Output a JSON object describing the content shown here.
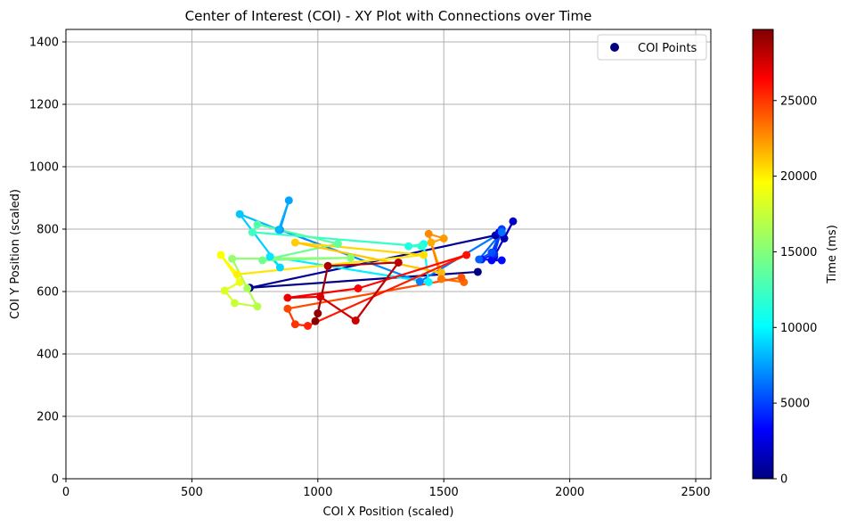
{
  "chart_data": {
    "type": "scatter",
    "title": "Center of Interest (COI) - XY Plot with Connections over Time",
    "xlabel": "COI X Position (scaled)",
    "ylabel": "COI Y Position (scaled)",
    "xlim": [
      0,
      2560
    ],
    "ylim": [
      0,
      1440
    ],
    "x_ticks": [
      "0",
      "500",
      "1000",
      "1500",
      "2000",
      "2500"
    ],
    "y_ticks": [
      "0",
      "200",
      "400",
      "600",
      "800",
      "1000",
      "1200",
      "1400"
    ],
    "grid": true,
    "legend_position": "top-right",
    "legend_label": "COI Points",
    "colorbar": {
      "label": "Time (ms)",
      "range": [
        0,
        29700
      ],
      "ticks": [
        "0",
        "5000",
        "10000",
        "15000",
        "20000",
        "25000"
      ],
      "colormap": "jet"
    },
    "series": [
      {
        "name": "COI Points",
        "t": [
          0,
          500,
          1000,
          1500,
          2000,
          2500,
          3000,
          3500,
          4000,
          4500,
          5000,
          5500,
          6000,
          6500,
          7000,
          7500,
          8000,
          8500,
          9000,
          9500,
          10000,
          10500,
          11000,
          11500,
          12000,
          12500,
          13000,
          13500,
          14000,
          14500,
          15000,
          15500,
          16000,
          16500,
          17000,
          17500,
          18000,
          18500,
          19000,
          19500,
          20000,
          20500,
          21000,
          21500,
          22000,
          22500,
          23000,
          23500,
          24000,
          24500,
          25000,
          25500,
          26000,
          26500,
          27000,
          27500,
          28000,
          28500,
          29000,
          29500
        ],
        "x": [
          1635,
          730,
          1705,
          1740,
          1775,
          1700,
          1720,
          1690,
          1730,
          1650,
          1700,
          1730,
          1690,
          1640,
          1730,
          1405,
          850,
          885,
          845,
          690,
          850,
          810,
          1440,
          1420,
          1360,
          1410,
          740,
          760,
          1080,
          780,
          1130,
          660,
          720,
          760,
          670,
          630,
          690,
          615,
          680,
          1420,
          910,
          1490,
          1450,
          1500,
          1440,
          1490,
          1580,
          1570,
          880,
          910,
          960,
          1590,
          1160,
          880,
          1010,
          1150,
          1320,
          1040,
          1000,
          990
        ],
        "y": [
          663,
          612,
          780,
          770,
          825,
          712,
          790,
          700,
          700,
          703,
          720,
          800,
          725,
          703,
          790,
          632,
          798,
          892,
          798,
          848,
          677,
          712,
          630,
          752,
          745,
          745,
          790,
          815,
          753,
          700,
          708,
          705,
          610,
          552,
          563,
          603,
          630,
          717,
          655,
          717,
          757,
          660,
          757,
          770,
          785,
          640,
          630,
          645,
          545,
          495,
          490,
          717,
          610,
          580,
          583,
          507,
          693,
          682,
          530,
          505
        ]
      }
    ]
  }
}
